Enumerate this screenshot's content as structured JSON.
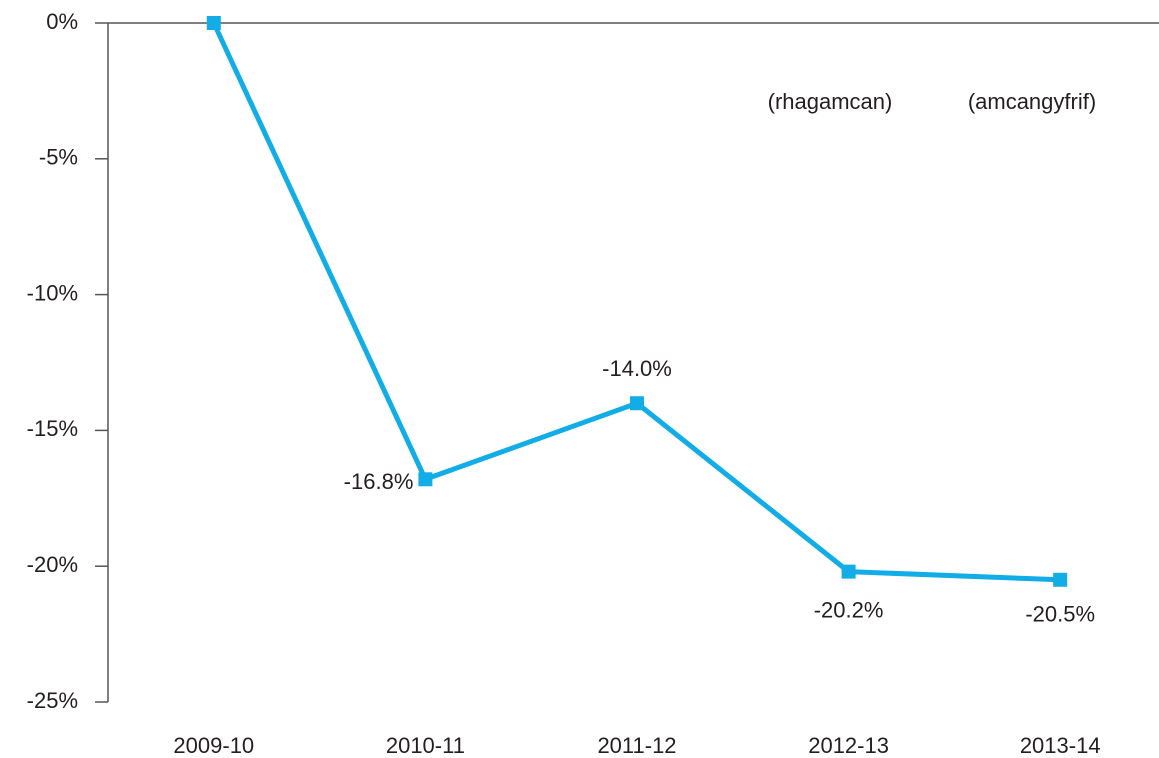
{
  "chart_data": {
    "type": "line",
    "categories": [
      "2009-10",
      "2010-11",
      "2011-12",
      "2012-13",
      "2013-14"
    ],
    "series": [
      {
        "color": "#12ade6",
        "values": [
          0,
          -16.8,
          -14.0,
          -20.2,
          -20.5
        ],
        "value_labels": [
          null,
          "-16.8%",
          "-14.0%",
          "-20.2%",
          "-20.5%"
        ]
      }
    ],
    "ylim": [
      -25,
      0
    ],
    "yticks": [
      {
        "value": 0,
        "label": "0%"
      },
      {
        "value": -5,
        "label": "-5%"
      },
      {
        "value": -10,
        "label": "-10%"
      },
      {
        "value": -15,
        "label": "-15%"
      },
      {
        "value": -20,
        "label": "-20%"
      },
      {
        "value": -25,
        "label": "-25%"
      }
    ],
    "annotations": [
      "(rhagamcan)",
      "(amcangyfrif)"
    ],
    "grid": false
  }
}
